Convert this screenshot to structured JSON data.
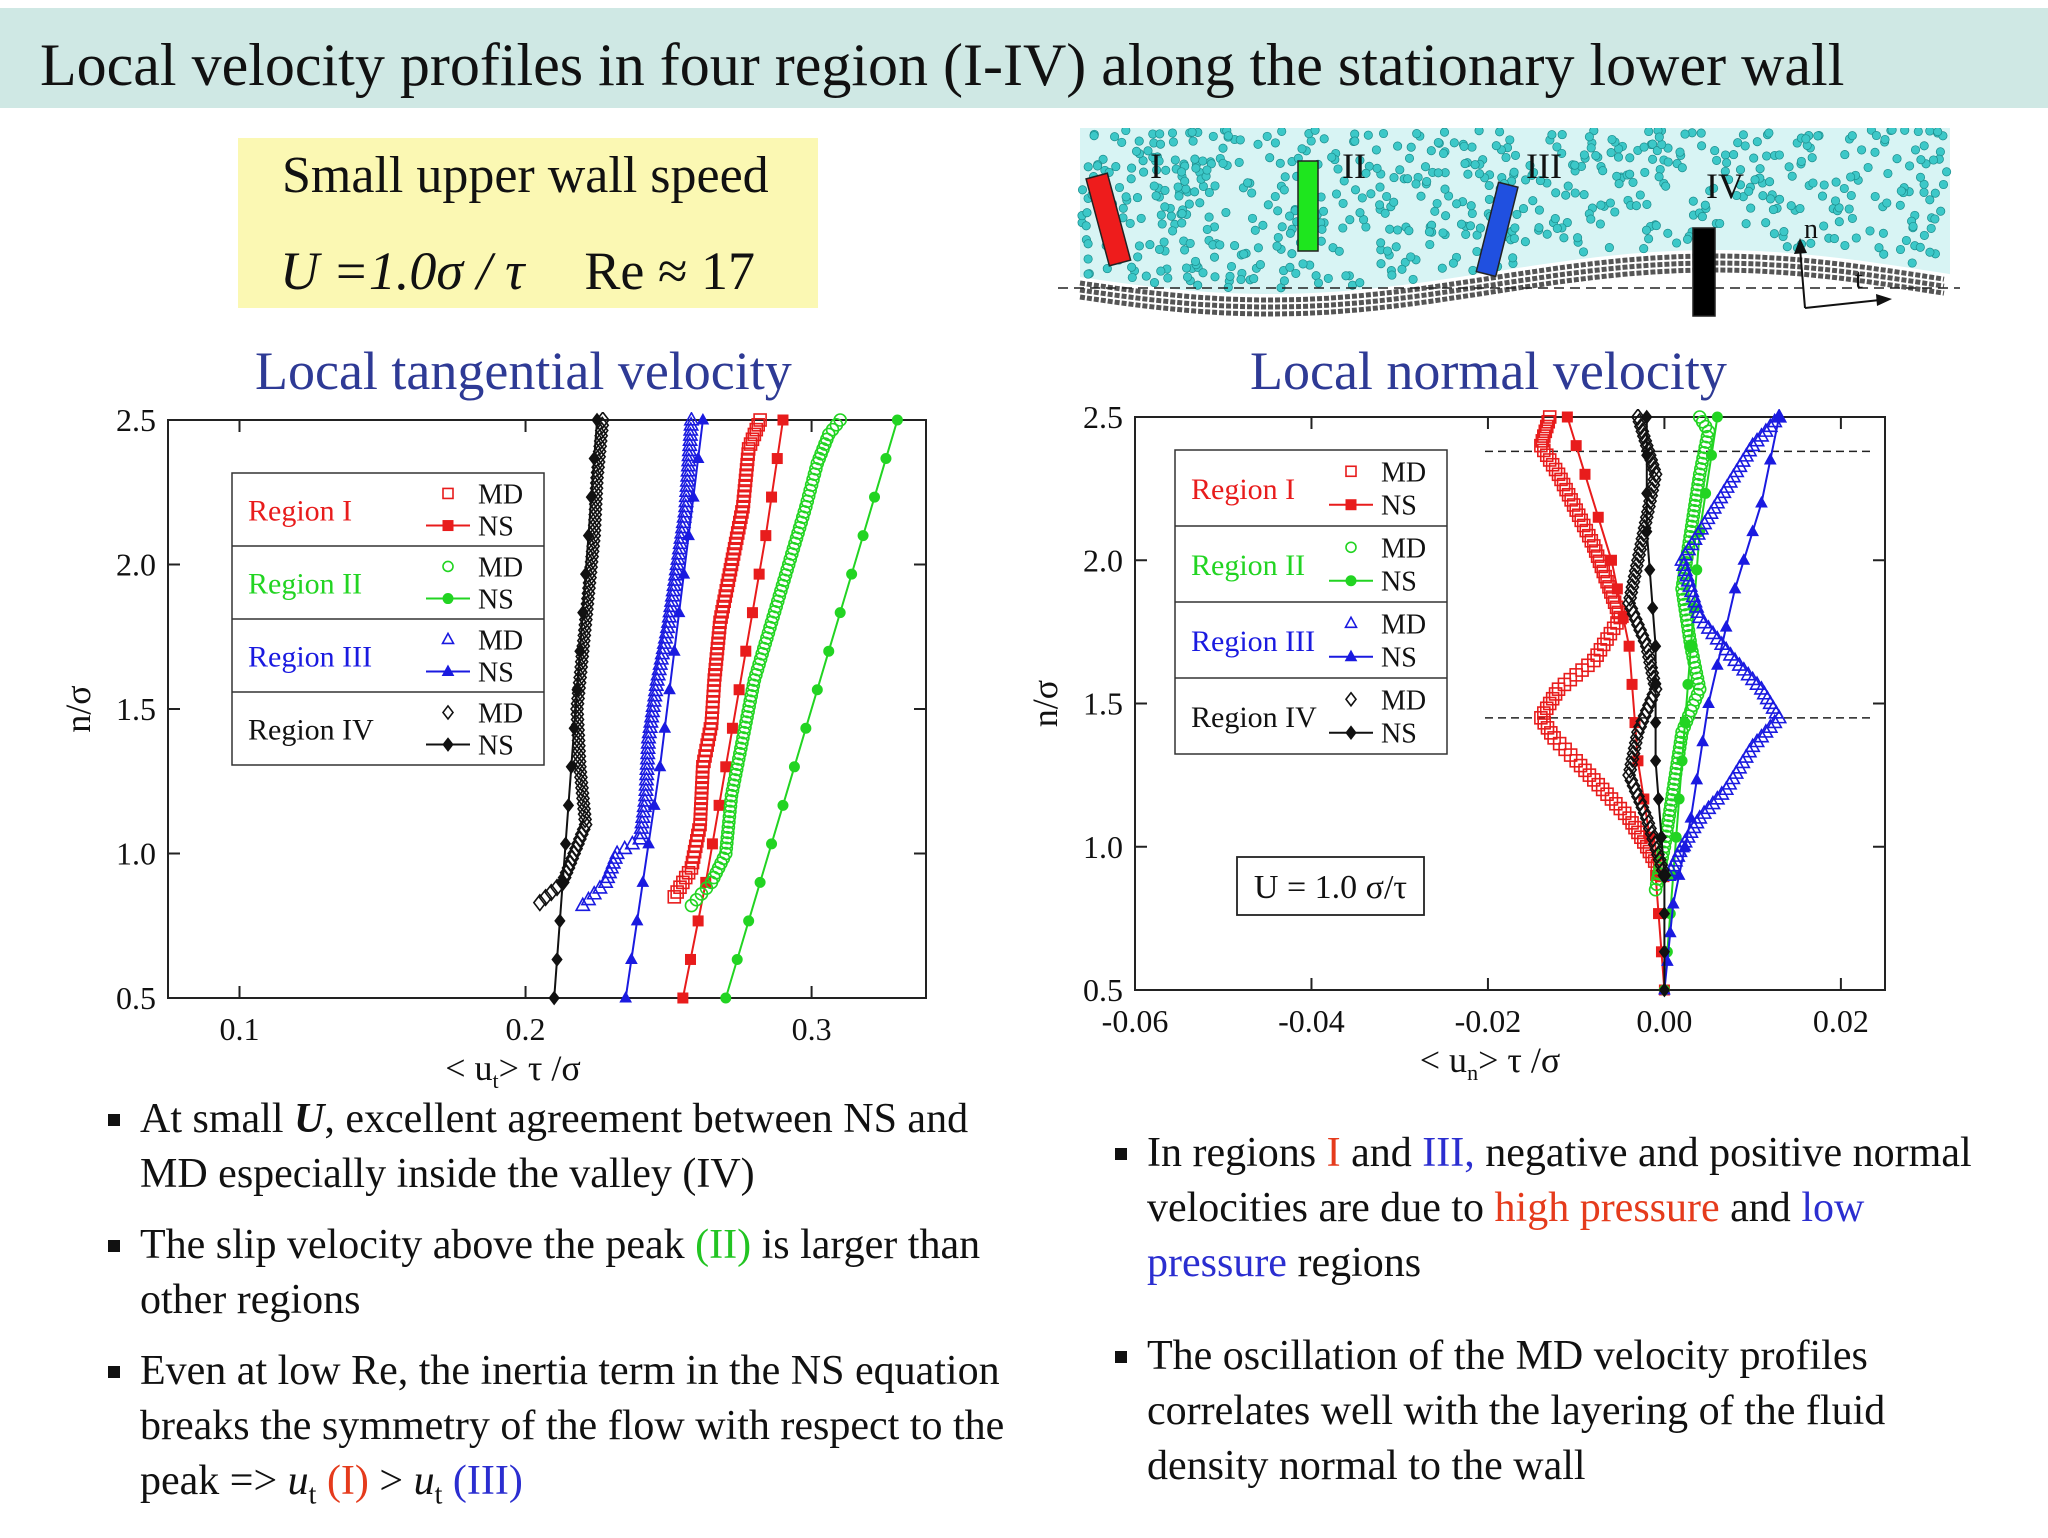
{
  "title": "Local velocity profiles in four region (I-IV) along the stationary lower wall",
  "params": {
    "line1": "Small upper wall speed",
    "equation": "U =1.0σ / τ",
    "reynolds": "Re ≈ 17"
  },
  "schematic": {
    "region_labels": [
      "I",
      "II",
      "III",
      "IV"
    ],
    "axis_n": "n",
    "axis_t": "t",
    "region_colors": [
      "#ee1c1c",
      "#1ee61e",
      "#2050e0",
      "#000000"
    ],
    "particle_color": "#3cc8c8"
  },
  "left_panel": {
    "title": "Local tangential velocity",
    "chart_data": {
      "type": "scatter",
      "xlabel": "< u_t> τ /σ",
      "ylabel": "n/σ",
      "xlim": [
        0.075,
        0.34
      ],
      "ylim": [
        0.5,
        2.5
      ],
      "x_ticks": [
        "0.1",
        "0.2",
        "0.3"
      ],
      "x_tick_values": [
        0.1,
        0.2,
        0.3
      ],
      "y_ticks": [
        "0.5",
        "1.0",
        "1.5",
        "2.0",
        "2.5"
      ],
      "y_tick_values": [
        0.5,
        1.0,
        1.5,
        2.0,
        2.5
      ],
      "legend": {
        "placement": "top-left",
        "regions": [
          "Region I",
          "Region II",
          "Region III",
          "Region IV"
        ],
        "md_label": "MD",
        "ns_label": "NS",
        "colors": [
          "#e81c1c",
          "#22d422",
          "#1a1ae0",
          "#111111"
        ]
      },
      "series": [
        {
          "name": "Region I MD",
          "marker": "square-open",
          "color": "#e81c1c",
          "x": [
            0.252,
            0.258,
            0.261,
            0.262,
            0.265,
            0.266,
            0.268,
            0.272,
            0.276,
            0.278,
            0.282
          ],
          "y": [
            0.85,
            0.95,
            1.1,
            1.3,
            1.45,
            1.6,
            1.8,
            2.0,
            2.2,
            2.4,
            2.5
          ]
        },
        {
          "name": "Region I NS",
          "marker": "square-filled",
          "color": "#e81c1c",
          "x": [
            0.255,
            0.263,
            0.27,
            0.277,
            0.284,
            0.29
          ],
          "y": [
            0.5,
            0.9,
            1.3,
            1.7,
            2.1,
            2.5
          ]
        },
        {
          "name": "Region II MD",
          "marker": "circle-open",
          "color": "#22d422",
          "x": [
            0.258,
            0.265,
            0.27,
            0.272,
            0.276,
            0.28,
            0.286,
            0.292,
            0.298,
            0.302,
            0.306,
            0.31
          ],
          "y": [
            0.82,
            0.9,
            1.0,
            1.2,
            1.4,
            1.6,
            1.8,
            2.0,
            2.2,
            2.35,
            2.45,
            2.5
          ]
        },
        {
          "name": "Region II NS",
          "marker": "circle-filled",
          "color": "#22d422",
          "x": [
            0.27,
            0.282,
            0.294,
            0.306,
            0.318,
            0.33
          ],
          "y": [
            0.5,
            0.9,
            1.3,
            1.7,
            2.1,
            2.5
          ]
        },
        {
          "name": "Region III MD",
          "marker": "triangle-open",
          "color": "#1a1ae0",
          "x": [
            0.22,
            0.228,
            0.232,
            0.24,
            0.242,
            0.243,
            0.246,
            0.25,
            0.253,
            0.256,
            0.258
          ],
          "y": [
            0.82,
            0.9,
            1.0,
            1.05,
            1.2,
            1.4,
            1.6,
            1.8,
            2.0,
            2.2,
            2.5
          ]
        },
        {
          "name": "Region III NS",
          "marker": "triangle-filled",
          "color": "#1a1ae0",
          "x": [
            0.235,
            0.241,
            0.247,
            0.252,
            0.257,
            0.262
          ],
          "y": [
            0.5,
            0.9,
            1.3,
            1.7,
            2.1,
            2.5
          ]
        },
        {
          "name": "Region IV MD",
          "marker": "diamond-open",
          "color": "#111111",
          "x": [
            0.205,
            0.213,
            0.217,
            0.221,
            0.219,
            0.218,
            0.22,
            0.222,
            0.224,
            0.225,
            0.227
          ],
          "y": [
            0.83,
            0.9,
            1.0,
            1.1,
            1.3,
            1.5,
            1.7,
            1.9,
            2.1,
            2.3,
            2.5
          ]
        },
        {
          "name": "Region IV NS",
          "marker": "diamond-filled",
          "color": "#111111",
          "x": [
            0.21,
            0.213,
            0.216,
            0.219,
            0.222,
            0.225
          ],
          "y": [
            0.5,
            0.9,
            1.3,
            1.7,
            2.1,
            2.5
          ]
        }
      ]
    }
  },
  "right_panel": {
    "title": "Local normal velocity",
    "annotation": "U = 1.0 σ/τ",
    "chart_data": {
      "type": "scatter",
      "xlabel": "< u_n> τ /σ",
      "ylabel": "n/σ",
      "xlim": [
        -0.06,
        0.025
      ],
      "ylim": [
        0.5,
        2.5
      ],
      "x_ticks": [
        "-0.06",
        "-0.04",
        "-0.02",
        "0.00",
        "0.02"
      ],
      "x_tick_values": [
        -0.06,
        -0.04,
        -0.02,
        0.0,
        0.02
      ],
      "y_ticks": [
        "0.5",
        "1.0",
        "1.5",
        "2.0",
        "2.5"
      ],
      "y_tick_values": [
        0.5,
        1.0,
        1.5,
        2.0,
        2.5
      ],
      "reference_lines_y": [
        2.38,
        1.45
      ],
      "legend": {
        "placement": "top-left",
        "regions": [
          "Region I",
          "Region II",
          "Region III",
          "Region IV"
        ],
        "md_label": "MD",
        "ns_label": "NS",
        "colors": [
          "#e81c1c",
          "#22d422",
          "#1a1ae0",
          "#111111"
        ]
      },
      "series": [
        {
          "name": "Region I MD",
          "marker": "square-open",
          "color": "#e81c1c",
          "x": [
            -0.0002,
            -0.002,
            -0.004,
            -0.007,
            -0.01,
            -0.0125,
            -0.014,
            -0.012,
            -0.008,
            -0.005,
            -0.008,
            -0.012,
            -0.014,
            -0.013
          ],
          "y": [
            0.9,
            1.0,
            1.1,
            1.2,
            1.3,
            1.38,
            1.45,
            1.55,
            1.65,
            1.8,
            2.05,
            2.3,
            2.4,
            2.5
          ]
        },
        {
          "name": "Region I NS",
          "marker": "square-filled",
          "color": "#e81c1c",
          "x": [
            0.0,
            -0.001,
            -0.003,
            -0.004,
            -0.006,
            -0.009,
            -0.011
          ],
          "y": [
            0.5,
            0.9,
            1.3,
            1.7,
            2.0,
            2.3,
            2.5
          ]
        },
        {
          "name": "Region II MD",
          "marker": "circle-open",
          "color": "#22d422",
          "x": [
            -0.001,
            0.0,
            0.001,
            0.002,
            0.004,
            0.003,
            0.002,
            0.003,
            0.004,
            0.005,
            0.004
          ],
          "y": [
            0.85,
            1.0,
            1.2,
            1.4,
            1.55,
            1.7,
            1.9,
            2.1,
            2.3,
            2.45,
            2.5
          ]
        },
        {
          "name": "Region II NS",
          "marker": "circle-filled",
          "color": "#22d422",
          "x": [
            0.0,
            0.001,
            0.002,
            0.003,
            0.004,
            0.006
          ],
          "y": [
            0.5,
            0.9,
            1.3,
            1.7,
            2.1,
            2.5
          ]
        },
        {
          "name": "Region III MD",
          "marker": "triangle-open",
          "color": "#1a1ae0",
          "x": [
            0.0005,
            0.002,
            0.004,
            0.007,
            0.01,
            0.013,
            0.011,
            0.008,
            0.004,
            0.002,
            0.006,
            0.01,
            0.013
          ],
          "y": [
            0.9,
            1.0,
            1.1,
            1.2,
            1.35,
            1.45,
            1.55,
            1.65,
            1.8,
            2.0,
            2.2,
            2.4,
            2.5
          ]
        },
        {
          "name": "Region III NS",
          "marker": "triangle-filled",
          "color": "#1a1ae0",
          "x": [
            0.0,
            0.001,
            0.003,
            0.005,
            0.008,
            0.011,
            0.013
          ],
          "y": [
            0.5,
            0.8,
            1.1,
            1.5,
            1.9,
            2.2,
            2.5
          ]
        },
        {
          "name": "Region IV MD",
          "marker": "diamond-open",
          "color": "#111111",
          "x": [
            0.0,
            -0.002,
            -0.004,
            -0.003,
            -0.001,
            -0.002,
            -0.004,
            -0.003,
            -0.002,
            -0.001,
            -0.002,
            -0.003
          ],
          "y": [
            0.9,
            1.1,
            1.25,
            1.4,
            1.55,
            1.7,
            1.85,
            2.0,
            2.15,
            2.3,
            2.4,
            2.5
          ]
        },
        {
          "name": "Region IV NS",
          "marker": "diamond-filled",
          "color": "#111111",
          "x": [
            0.0,
            0.0,
            -0.001,
            -0.001,
            -0.002,
            -0.002
          ],
          "y": [
            0.5,
            0.9,
            1.3,
            1.7,
            2.1,
            2.5
          ]
        }
      ]
    }
  },
  "left_bullets": [
    [
      {
        "t": "At small "
      },
      {
        "t": "U",
        "s": "bold-ital"
      },
      {
        "t": ", excellent agreement between NS and MD especially inside the valley (IV)"
      }
    ],
    [
      {
        "t": "The slip velocity above the peak "
      },
      {
        "t": "(II)",
        "s": "green"
      },
      {
        "t": " is larger than other regions"
      }
    ],
    [
      {
        "t": "Even at low Re, the inertia term in the NS equation breaks the symmetry of the flow with respect to the peak  => "
      },
      {
        "t": "u",
        "s": "ital"
      },
      {
        "t": "t",
        "s": "sub"
      },
      {
        "t": " "
      },
      {
        "t": "(I)",
        "s": "red"
      },
      {
        "t": " > "
      },
      {
        "t": "u",
        "s": "ital"
      },
      {
        "t": "t",
        "s": "sub"
      },
      {
        "t": " "
      },
      {
        "t": "(III)",
        "s": "blue"
      }
    ]
  ],
  "right_bullets": [
    [
      {
        "t": "In regions "
      },
      {
        "t": "I",
        "s": "red"
      },
      {
        "t": " and "
      },
      {
        "t": "III,",
        "s": "blue"
      },
      {
        "t": " negative and positive normal velocities are due to "
      },
      {
        "t": "high pressure",
        "s": "red"
      },
      {
        "t": " and "
      },
      {
        "t": "low pressure",
        "s": "blue"
      },
      {
        "t": " regions"
      }
    ],
    [
      {
        "t": "The oscillation of the MD velocity profiles correlates well with the layering of the fluid density normal to the wall"
      }
    ]
  ]
}
